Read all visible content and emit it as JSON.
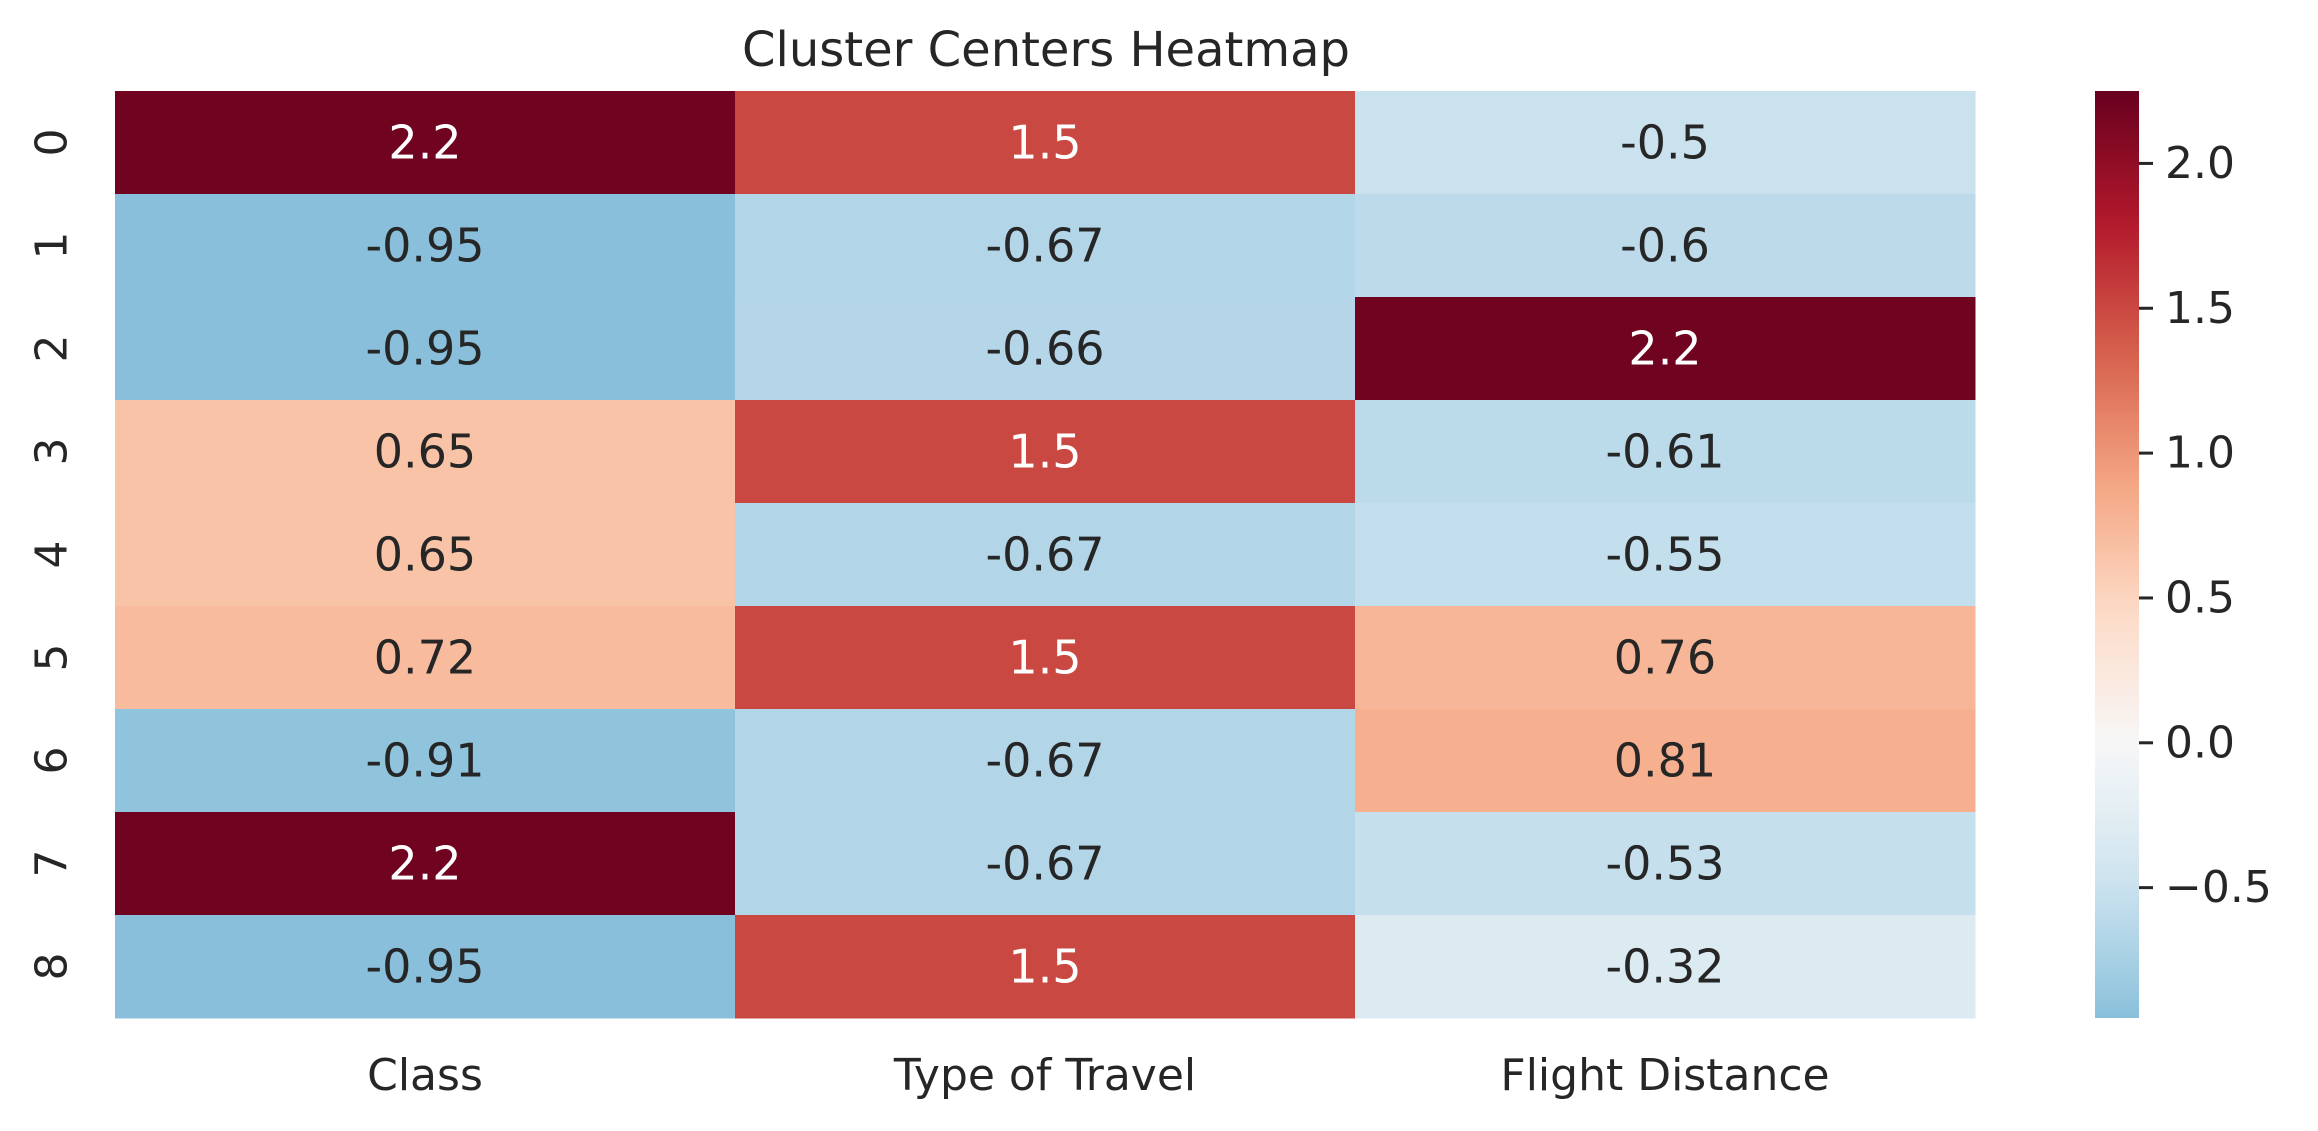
{
  "chart_data": {
    "type": "heatmap",
    "title": "Cluster Centers Heatmap",
    "x_categories": [
      "Class",
      "Type of Travel",
      "Flight Distance"
    ],
    "y_categories": [
      "0",
      "1",
      "2",
      "3",
      "4",
      "5",
      "6",
      "7",
      "8"
    ],
    "values": [
      [
        2.2,
        1.5,
        -0.5
      ],
      [
        -0.95,
        -0.67,
        -0.6
      ],
      [
        -0.95,
        -0.66,
        2.2
      ],
      [
        0.65,
        1.5,
        -0.61
      ],
      [
        0.65,
        -0.67,
        -0.55
      ],
      [
        0.72,
        1.5,
        0.76
      ],
      [
        -0.91,
        -0.67,
        0.81
      ],
      [
        2.2,
        -0.67,
        -0.53
      ],
      [
        -0.95,
        1.5,
        -0.32
      ]
    ],
    "annotations": [
      [
        "2.2",
        "1.5",
        "-0.5"
      ],
      [
        "-0.95",
        "-0.67",
        "-0.6"
      ],
      [
        "-0.95",
        "-0.66",
        "2.2"
      ],
      [
        "0.65",
        "1.5",
        "-0.61"
      ],
      [
        "0.65",
        "-0.67",
        "-0.55"
      ],
      [
        "0.72",
        "1.5",
        "0.76"
      ],
      [
        "-0.91",
        "-0.67",
        "0.81"
      ],
      [
        "2.2",
        "-0.67",
        "-0.53"
      ],
      [
        "-0.95",
        "1.5",
        "-0.32"
      ]
    ],
    "colormap": "RdBu_r",
    "center": 0,
    "color_range": [
      -0.95,
      2.25
    ],
    "colorbar": {
      "ticks": [
        2.0,
        1.5,
        1.0,
        0.5,
        0.0,
        -0.5
      ],
      "tick_labels": [
        "2.0",
        "1.5",
        "1.0",
        "0.5",
        "0.0",
        "−0.5"
      ]
    },
    "cell_colors": {
      "neg_075": "#a7cfe4",
      "neg_050": "#c7e0ed",
      "neg_025": "#e6eff4",
      "zero": "#f7f7f7",
      "pos_025": "#fbe3d6",
      "pos_050": "#f9c5ab",
      "pos_075": "#f19f7c",
      "pos_100": "#dc6e57",
      "pos_125": "#c43f3a",
      "pos_150": "#a7162b",
      "pos_175": "#67001f",
      "neg_095": "#87bedb"
    }
  }
}
